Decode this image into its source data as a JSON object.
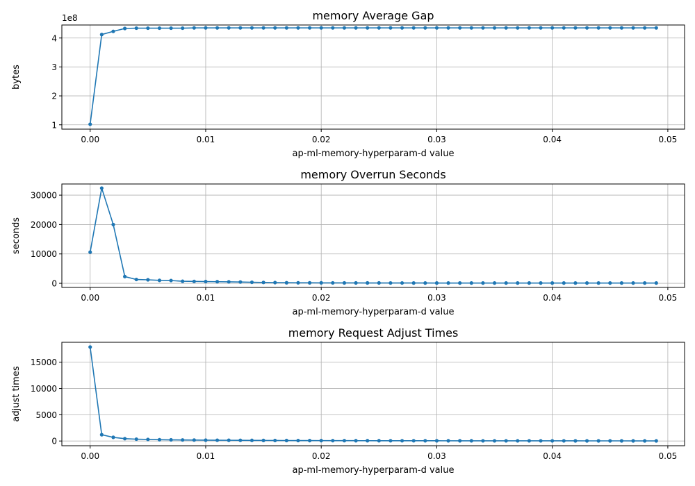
{
  "chart_data": [
    {
      "type": "line",
      "title": "memory Average Gap",
      "xlabel": "ap-ml-memory-hyperparam-d value",
      "ylabel": "bytes",
      "y_multiplier_label": "1e8",
      "xlim": [
        -0.00245,
        0.05145
      ],
      "ylim": [
        0.85,
        4.45
      ],
      "xticks": [
        0.0,
        0.01,
        0.02,
        0.03,
        0.04,
        0.05
      ],
      "xtick_labels": [
        "0.00",
        "0.01",
        "0.02",
        "0.03",
        "0.04",
        "0.05"
      ],
      "yticks": [
        1,
        2,
        3,
        4
      ],
      "ytick_labels": [
        "1",
        "2",
        "3",
        "4"
      ],
      "grid": true,
      "color": "#1f77b4",
      "x": [
        0.0,
        0.001,
        0.002,
        0.003,
        0.004,
        0.005,
        0.006,
        0.007,
        0.008,
        0.009,
        0.01,
        0.011,
        0.012,
        0.013,
        0.014,
        0.015,
        0.016,
        0.017,
        0.018,
        0.019,
        0.02,
        0.021,
        0.022,
        0.023,
        0.024,
        0.025,
        0.026,
        0.027,
        0.028,
        0.029,
        0.03,
        0.031,
        0.032,
        0.033,
        0.034,
        0.035,
        0.036,
        0.037,
        0.038,
        0.039,
        0.04,
        0.041,
        0.042,
        0.043,
        0.044,
        0.045,
        0.046,
        0.047,
        0.048,
        0.049
      ],
      "y": [
        1.02,
        4.12,
        4.23,
        4.33,
        4.34,
        4.34,
        4.34,
        4.34,
        4.34,
        4.35,
        4.35,
        4.35,
        4.35,
        4.35,
        4.35,
        4.35,
        4.35,
        4.35,
        4.35,
        4.35,
        4.35,
        4.35,
        4.35,
        4.35,
        4.35,
        4.35,
        4.35,
        4.35,
        4.35,
        4.35,
        4.35,
        4.35,
        4.35,
        4.35,
        4.35,
        4.35,
        4.35,
        4.35,
        4.35,
        4.35,
        4.35,
        4.35,
        4.35,
        4.35,
        4.35,
        4.35,
        4.35,
        4.35,
        4.35,
        4.35
      ]
    },
    {
      "type": "line",
      "title": "memory Overrun Seconds",
      "xlabel": "ap-ml-memory-hyperparam-d value",
      "ylabel": "seconds",
      "y_multiplier_label": "",
      "xlim": [
        -0.00245,
        0.05145
      ],
      "ylim": [
        -1400,
        33800
      ],
      "xticks": [
        0.0,
        0.01,
        0.02,
        0.03,
        0.04,
        0.05
      ],
      "xtick_labels": [
        "0.00",
        "0.01",
        "0.02",
        "0.03",
        "0.04",
        "0.05"
      ],
      "yticks": [
        0,
        10000,
        20000,
        30000
      ],
      "ytick_labels": [
        "0",
        "10000",
        "20000",
        "30000"
      ],
      "grid": true,
      "color": "#1f77b4",
      "x": [
        0.0,
        0.001,
        0.002,
        0.003,
        0.004,
        0.005,
        0.006,
        0.007,
        0.008,
        0.009,
        0.01,
        0.011,
        0.012,
        0.013,
        0.014,
        0.015,
        0.016,
        0.017,
        0.018,
        0.019,
        0.02,
        0.021,
        0.022,
        0.023,
        0.024,
        0.025,
        0.026,
        0.027,
        0.028,
        0.029,
        0.03,
        0.031,
        0.032,
        0.033,
        0.034,
        0.035,
        0.036,
        0.037,
        0.038,
        0.039,
        0.04,
        0.041,
        0.042,
        0.043,
        0.044,
        0.045,
        0.046,
        0.047,
        0.048,
        0.049
      ],
      "y": [
        10600,
        32400,
        20000,
        2300,
        1300,
        1200,
        1000,
        950,
        700,
        650,
        600,
        550,
        500,
        450,
        350,
        300,
        250,
        200,
        180,
        170,
        160,
        150,
        140,
        140,
        130,
        130,
        120,
        120,
        110,
        110,
        100,
        100,
        100,
        100,
        100,
        100,
        100,
        100,
        100,
        100,
        100,
        100,
        100,
        100,
        100,
        100,
        100,
        100,
        100,
        100
      ]
    },
    {
      "type": "line",
      "title": "memory Request Adjust Times",
      "xlabel": "ap-ml-memory-hyperparam-d value",
      "ylabel": "adjust times",
      "y_multiplier_label": "",
      "xlim": [
        -0.00245,
        0.05145
      ],
      "ylim": [
        -900,
        18800
      ],
      "xticks": [
        0.0,
        0.01,
        0.02,
        0.03,
        0.04,
        0.05
      ],
      "xtick_labels": [
        "0.00",
        "0.01",
        "0.02",
        "0.03",
        "0.04",
        "0.05"
      ],
      "yticks": [
        0,
        5000,
        10000,
        15000
      ],
      "ytick_labels": [
        "0",
        "5000",
        "10000",
        "15000"
      ],
      "grid": true,
      "color": "#1f77b4",
      "x": [
        0.0,
        0.001,
        0.002,
        0.003,
        0.004,
        0.005,
        0.006,
        0.007,
        0.008,
        0.009,
        0.01,
        0.011,
        0.012,
        0.013,
        0.014,
        0.015,
        0.016,
        0.017,
        0.018,
        0.019,
        0.02,
        0.021,
        0.022,
        0.023,
        0.024,
        0.025,
        0.026,
        0.027,
        0.028,
        0.029,
        0.03,
        0.031,
        0.032,
        0.033,
        0.034,
        0.035,
        0.036,
        0.037,
        0.038,
        0.039,
        0.04,
        0.041,
        0.042,
        0.043,
        0.044,
        0.045,
        0.046,
        0.047,
        0.048,
        0.049
      ],
      "y": [
        17900,
        1200,
        700,
        450,
        350,
        300,
        250,
        220,
        200,
        180,
        160,
        150,
        140,
        130,
        120,
        110,
        100,
        90,
        85,
        80,
        75,
        70,
        65,
        60,
        58,
        55,
        52,
        50,
        48,
        46,
        44,
        42,
        40,
        38,
        36,
        35,
        34,
        33,
        32,
        31,
        30,
        29,
        28,
        27,
        26,
        25,
        24,
        23,
        22,
        21
      ]
    }
  ]
}
